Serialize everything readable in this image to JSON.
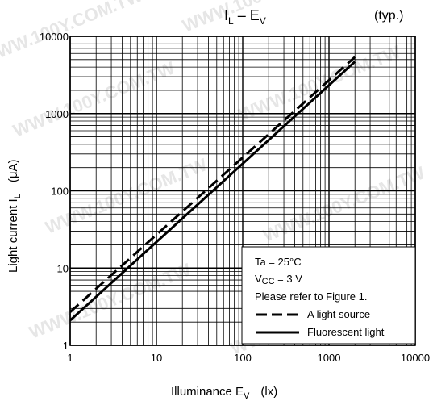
{
  "chart_data": {
    "type": "line",
    "title": "IL – EV",
    "title_main": "I",
    "title_sub1": "L",
    "title_mid": " – E",
    "title_sub2": "V",
    "subtitle": "(typ.)",
    "xlabel_main": "Illuminance   E",
    "xlabel_sub": "V",
    "xlabel_unit": "(lx)",
    "ylabel_main": "Light current   I",
    "ylabel_sub": "L",
    "ylabel_unit": "(μA)",
    "x_scale": "log",
    "y_scale": "log",
    "xlim": [
      1,
      10000
    ],
    "ylim": [
      1,
      10000
    ],
    "grid": true,
    "x_ticks": [
      "1",
      "10",
      "100",
      "1000",
      "10000"
    ],
    "y_ticks": [
      "1",
      "10",
      "100",
      "1000",
      "10000"
    ],
    "series": [
      {
        "name": "A light source",
        "style": "dashed",
        "x": [
          1,
          2000
        ],
        "y": [
          2.7,
          5400
        ]
      },
      {
        "name": "Fluorescent light",
        "style": "solid",
        "x": [
          1,
          2000
        ],
        "y": [
          2.1,
          4700
        ]
      }
    ],
    "conditions": {
      "ta": "Ta = 25°C",
      "vcc_main": "V",
      "vcc_sub": "CC",
      "vcc_rest": " = 3 V",
      "note": "Please refer to Figure 1."
    },
    "legend_position": "bottom-right",
    "watermark": "WWW.100Y.COM.TW"
  }
}
